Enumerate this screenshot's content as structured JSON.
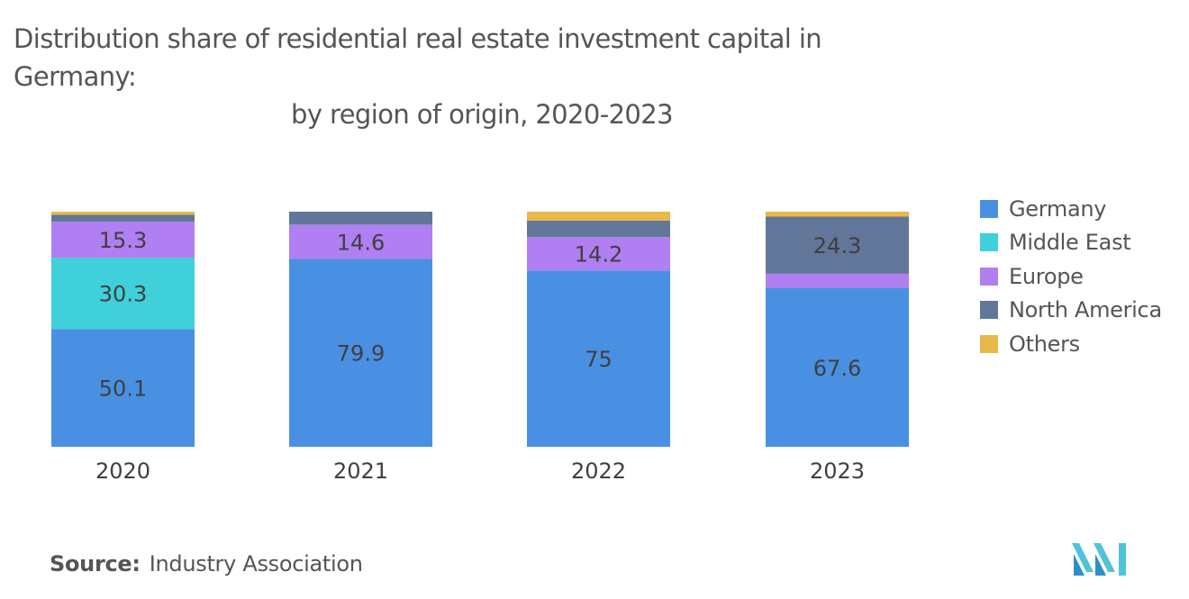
{
  "title": {
    "line1": "Distribution share of residential real estate investment capital in Germany:",
    "line2": "by region of origin, 2020-2023"
  },
  "chart_data": {
    "type": "bar",
    "stacked": true,
    "title": "Distribution share of residential real estate investment capital in Germany: by region of origin, 2020-2023",
    "categories": [
      "2020",
      "2021",
      "2022",
      "2023"
    ],
    "ylim": [
      0,
      100
    ],
    "series": [
      {
        "name": "Germany",
        "color": "#4a90e2",
        "values": [
          50.1,
          79.9,
          75,
          67.6
        ],
        "labels": [
          "50.1",
          "79.9",
          "75",
          "67.6"
        ]
      },
      {
        "name": "Middle East",
        "color": "#3fd0d9",
        "values": [
          30.3,
          0,
          0,
          0
        ],
        "labels": [
          "30.3",
          "",
          "",
          ""
        ]
      },
      {
        "name": "Europe",
        "color": "#b07ff2",
        "values": [
          15.3,
          14.6,
          14.2,
          6.0
        ],
        "labels": [
          "15.3",
          "14.6",
          "14.2",
          ""
        ]
      },
      {
        "name": "North America",
        "color": "#627699",
        "values": [
          3.0,
          5.5,
          7.0,
          24.3
        ],
        "labels": [
          "",
          "",
          "",
          "24.3"
        ]
      },
      {
        "name": "Others",
        "color": "#e8b84a",
        "values": [
          1.3,
          0,
          3.8,
          2.1
        ],
        "labels": [
          "",
          "",
          "",
          ""
        ]
      }
    ],
    "legend_position": "right",
    "grid": false
  },
  "source": {
    "label": "Source:",
    "text": "Industry Association"
  }
}
